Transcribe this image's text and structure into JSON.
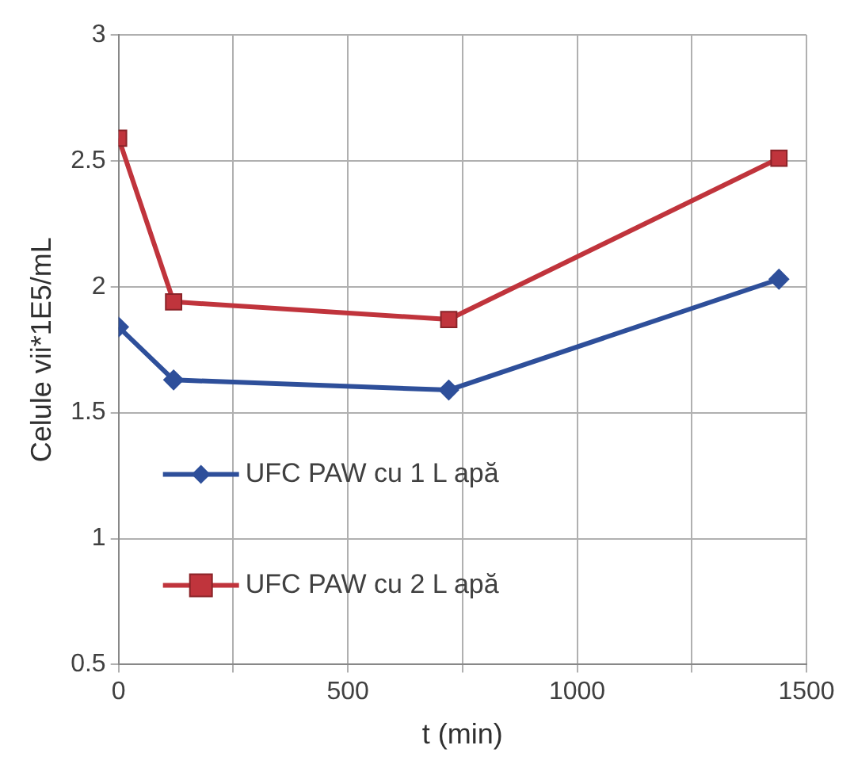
{
  "chart_data": {
    "type": "line",
    "xlabel": "t (min)",
    "ylabel": "Celule vii*1E5/mL",
    "xlim": [
      0,
      1500
    ],
    "xticks": [
      0,
      {
        "value": 250,
        "label": null
      },
      500,
      {
        "value": 750,
        "label": null
      },
      1000,
      {
        "value": 1250,
        "label": null
      },
      1500
    ],
    "ylim": [
      0.5,
      3
    ],
    "yticks": [
      0.5,
      1,
      1.5,
      2,
      2.5,
      3
    ],
    "grid": true,
    "legend": "bottom left",
    "line_style": "solid",
    "series": [
      {
        "name": "UFC PAW cu 1 L apă",
        "color": "#2e4f9a",
        "marker": "diamond",
        "x": [
          0,
          120,
          720,
          1440
        ],
        "values": [
          1.84,
          1.63,
          1.59,
          2.03
        ]
      },
      {
        "name": "UFC PAW cu 2 L apă",
        "color": "#c0343c",
        "marker": "square",
        "x": [
          0,
          120,
          720,
          1440
        ],
        "values": [
          2.59,
          1.94,
          1.87,
          2.51
        ]
      }
    ]
  }
}
